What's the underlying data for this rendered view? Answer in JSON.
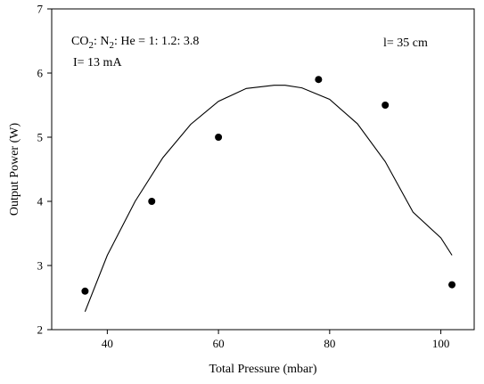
{
  "chart_data": {
    "type": "scatter",
    "title": "",
    "xlabel": "Total Pressure (mbar)",
    "ylabel": "Output Power (W)",
    "xlim": [
      30,
      106
    ],
    "ylim": [
      2,
      7
    ],
    "xticks": [
      40,
      60,
      80,
      100
    ],
    "yticks": [
      2,
      3,
      4,
      5,
      6,
      7
    ],
    "x_tick_labels": [
      "40",
      "60",
      "80",
      "100"
    ],
    "y_tick_labels": [
      "2",
      "3",
      "4",
      "5",
      "6",
      "7"
    ],
    "grid": false,
    "legend": "none",
    "series": [
      {
        "x": [
          36,
          48,
          60,
          78,
          90,
          102
        ],
        "y": [
          2.6,
          4.0,
          5.0,
          5.9,
          5.5,
          2.7
        ]
      }
    ],
    "fit_curve": {
      "x": [
        36,
        40,
        45,
        50,
        55,
        60,
        65,
        70,
        72,
        75,
        80,
        85,
        90,
        95,
        100,
        102
      ],
      "y": [
        2.28,
        3.16,
        4.0,
        4.68,
        5.2,
        5.56,
        5.76,
        5.81,
        5.81,
        5.77,
        5.59,
        5.21,
        4.62,
        3.83,
        3.43,
        3.16
      ]
    },
    "annotations": {
      "composition_prefix": "CO",
      "composition_sub1": "2",
      "composition_mid": ": N",
      "composition_sub2": "2",
      "composition_suffix": ": He = 1: 1.2: 3.8",
      "current": "I= 13 mA",
      "length": "l= 35 cm"
    }
  }
}
